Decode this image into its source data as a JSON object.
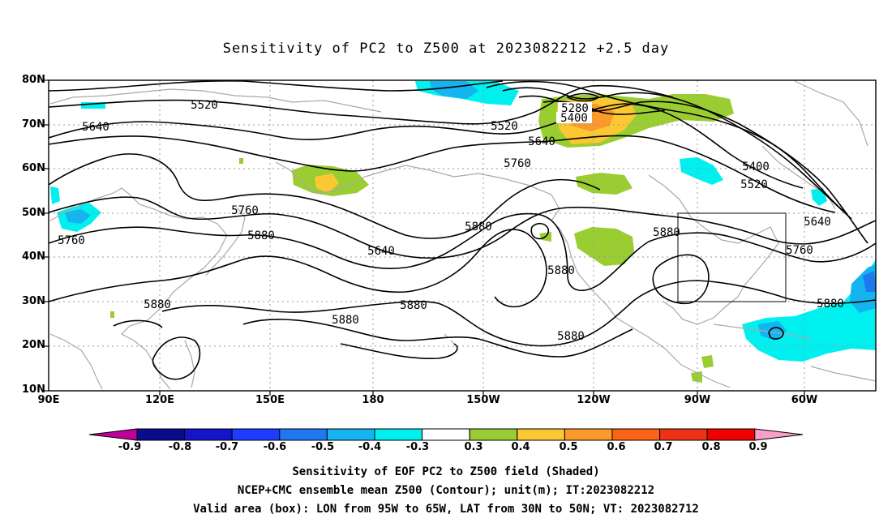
{
  "title": "Sensitivity of PC2 to Z500 at 2023082212 +2.5 day",
  "map": {
    "lon_range": [
      "90E",
      "30W"
    ],
    "lat_range": [
      "10N",
      "80N"
    ],
    "lat_labels": [
      "80N",
      "70N",
      "60N",
      "50N",
      "40N",
      "30N",
      "20N",
      "10N"
    ],
    "lon_labels": [
      "90E",
      "120E",
      "150E",
      "180",
      "150W",
      "120W",
      "90W",
      "60W"
    ],
    "contour_labels": [
      "5520",
      "5640",
      "5280",
      "5400",
      "5520",
      "5640",
      "5760",
      "5400",
      "5520",
      "5760",
      "5880",
      "5640",
      "5880",
      "5640",
      "5760",
      "5760",
      "5880",
      "5880",
      "5880",
      "5880",
      "5880",
      "5880",
      "5880"
    ],
    "box": {
      "lon_from": "95W",
      "lon_to": "65W",
      "lat_from": "30N",
      "lat_to": "50N"
    },
    "grid": true
  },
  "colorbar": {
    "labels": [
      "-0.9",
      "-0.8",
      "-0.7",
      "-0.6",
      "-0.5",
      "-0.4",
      "-0.3",
      "0.3",
      "0.4",
      "0.5",
      "0.6",
      "0.7",
      "0.8",
      "0.9"
    ],
    "colors": [
      "#c0009b",
      "#0a0a8c",
      "#1414c8",
      "#1e3cff",
      "#1e78f0",
      "#14b4f0",
      "#00f0f0",
      "#ffffff",
      "#9acd32",
      "#fbc834",
      "#fb9a28",
      "#fb6414",
      "#f03214",
      "#f00000",
      "#f8a0c8"
    ]
  },
  "captions": [
    "Sensitivity of EOF PC2 to Z500 field (Shaded)",
    "NCEP+CMC ensemble mean Z500 (Contour); unit(m); IT:2023082212",
    "Valid area (box): LON from 95W to 65W, LAT from 30N to 50N; VT: 2023082712"
  ]
}
